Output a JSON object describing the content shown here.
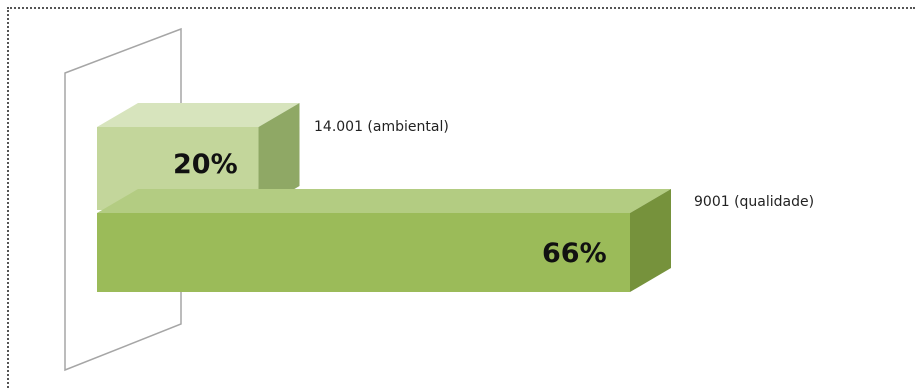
{
  "chart_data": {
    "type": "bar",
    "orientation": "horizontal",
    "categories": [
      "14.001 (ambiental)",
      "9001 (qualidade)"
    ],
    "values": [
      20,
      66
    ],
    "value_labels": [
      "20%",
      "66%"
    ],
    "xlim": [
      0,
      100
    ],
    "grid": false,
    "legend": "none",
    "colors": {
      "bar1_front": "#c3d69b",
      "bar1_top": "#d7e4bd",
      "bar1_side": "#8fa865",
      "bar2_front": "#9bbb59",
      "bar2_top": "#b3cc82",
      "bar2_side": "#76923c",
      "wall": "#ffffff",
      "wall_stroke": "#a6a6a6"
    }
  }
}
